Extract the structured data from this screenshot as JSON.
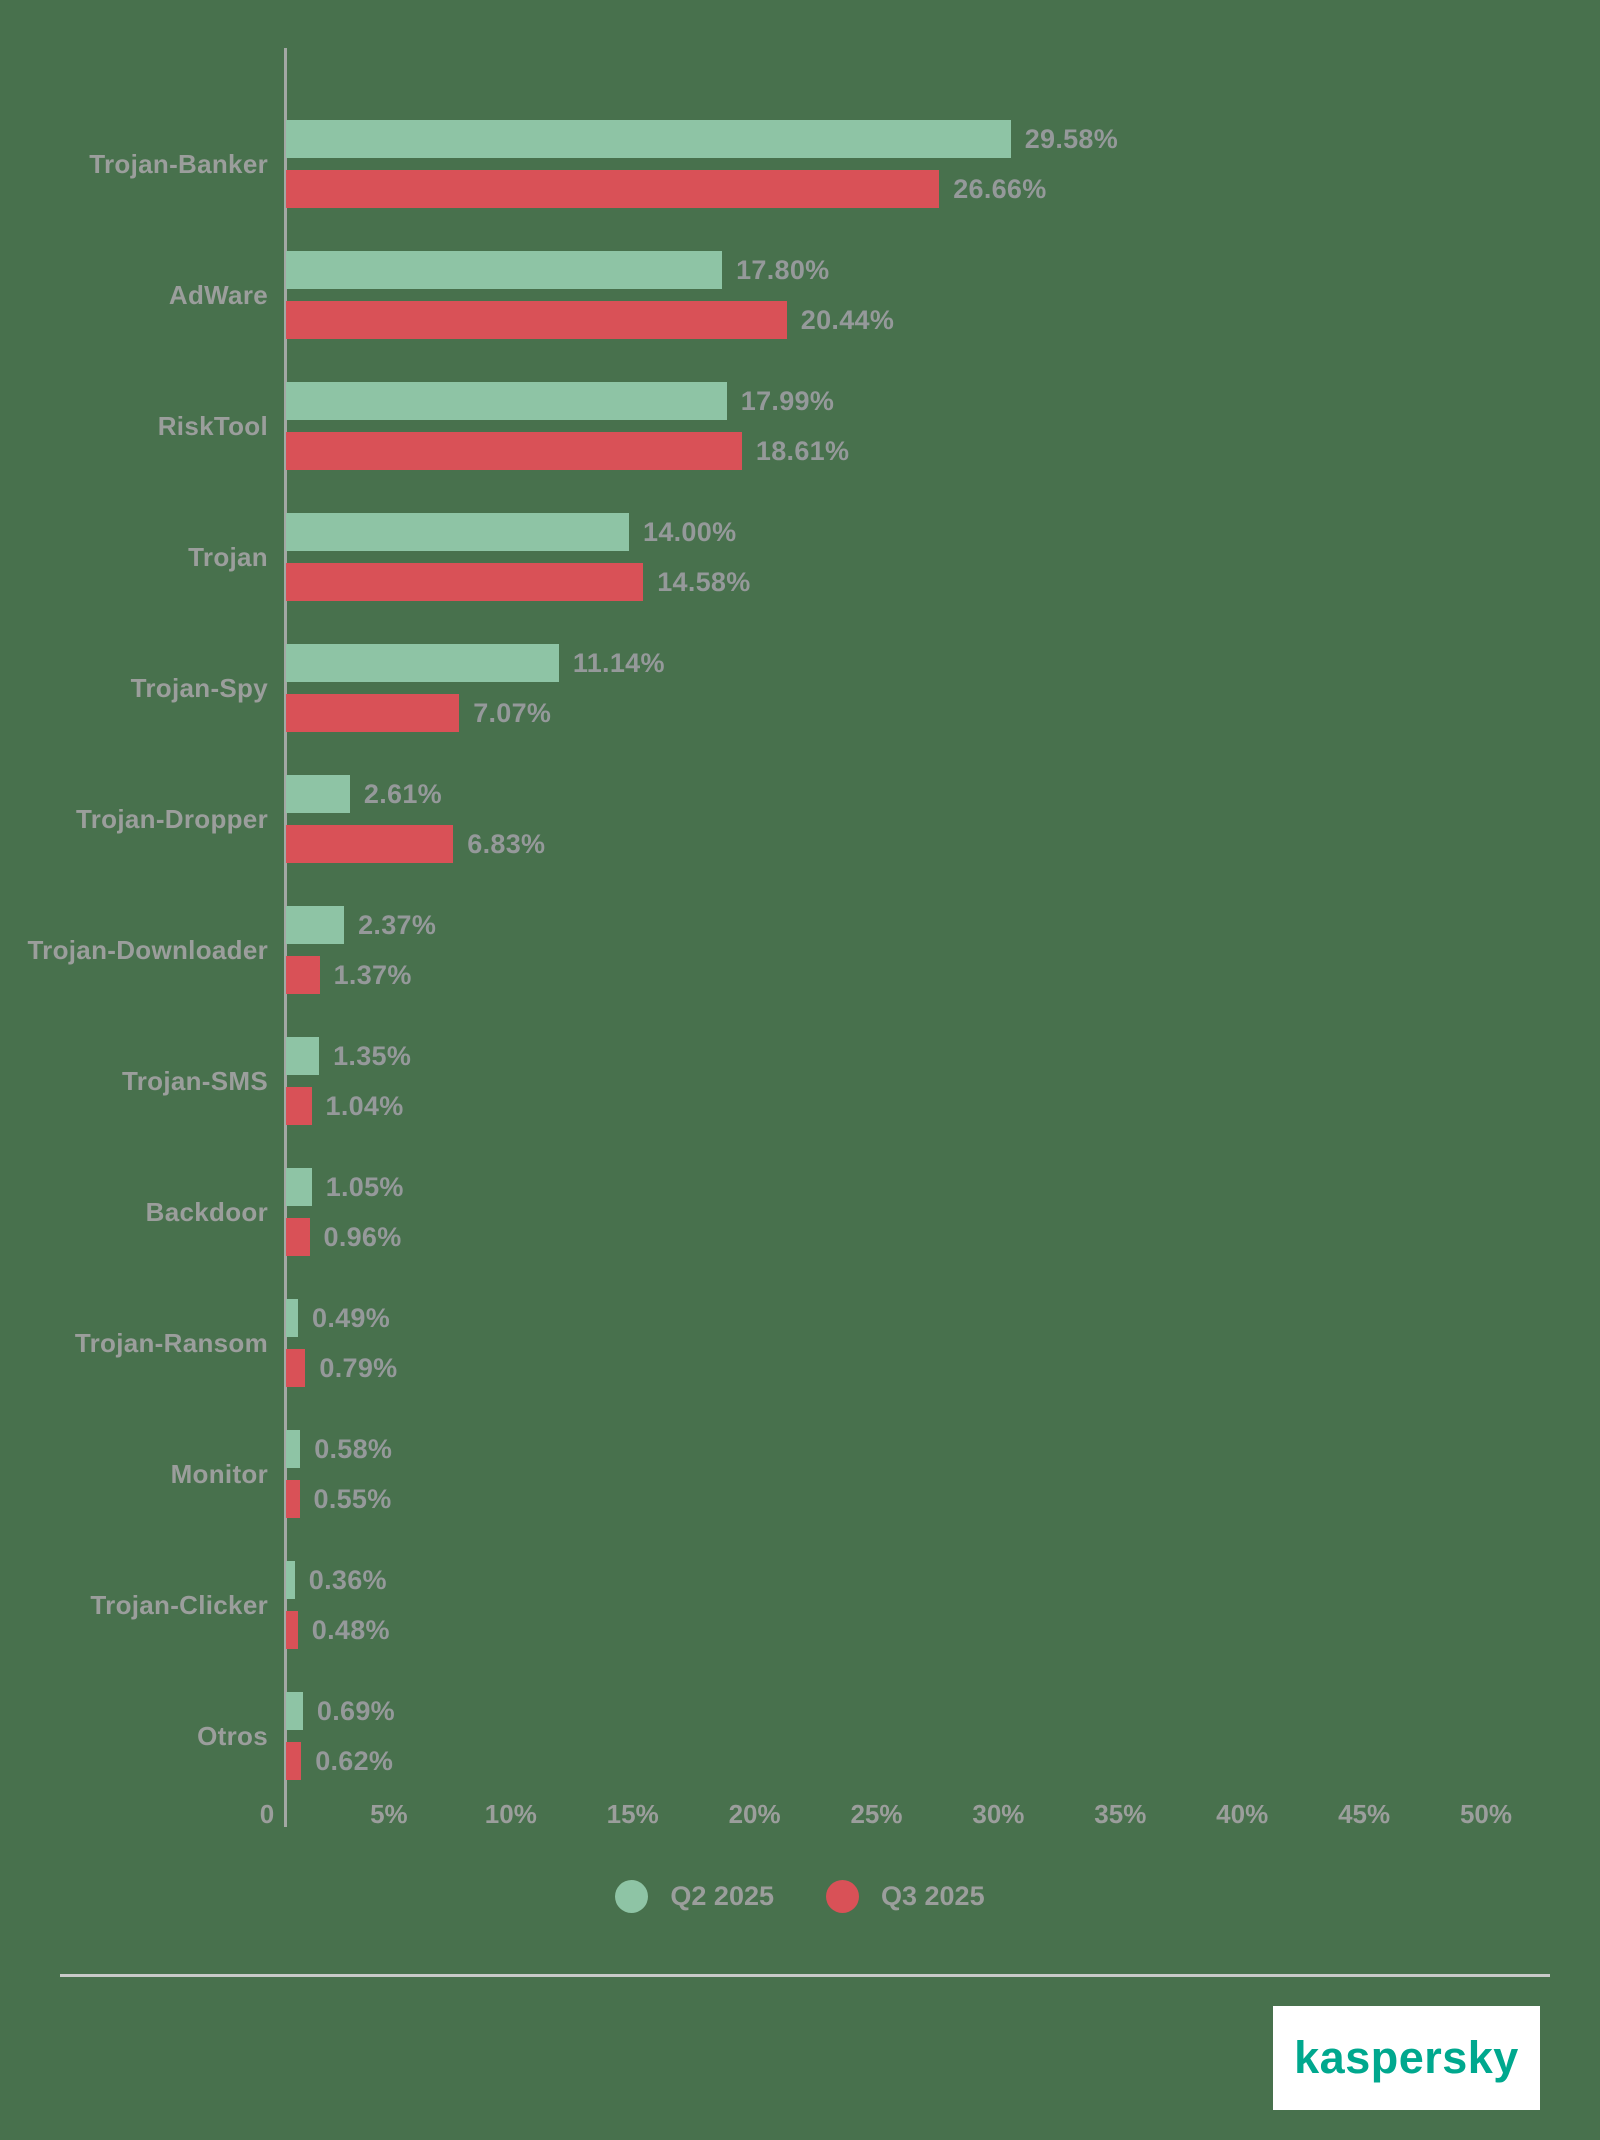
{
  "chart_data": {
    "type": "bar",
    "orientation": "horizontal",
    "categories": [
      "Trojan-Banker",
      "AdWare",
      "RiskTool",
      "Trojan",
      "Trojan-Spy",
      "Trojan-Dropper",
      "Trojan-Downloader",
      "Trojan-SMS",
      "Backdoor",
      "Trojan-Ransom",
      "Monitor",
      "Trojan-Clicker",
      "Otros"
    ],
    "series": [
      {
        "name": "Q2 2025",
        "color": "#8ec4a5",
        "values": [
          29.58,
          17.8,
          17.99,
          14.0,
          11.14,
          2.61,
          2.37,
          1.35,
          1.05,
          0.49,
          0.58,
          0.36,
          0.69
        ],
        "labels": [
          "29.58%",
          "17.80%",
          "17.99%",
          "14.00%",
          "11.14%",
          "2.61%",
          "2.37%",
          "1.35%",
          "1.05%",
          "0.49%",
          "0.58%",
          "0.36%",
          "0.69%"
        ]
      },
      {
        "name": "Q3 2025",
        "color": "#d95157",
        "values": [
          26.66,
          20.44,
          18.61,
          14.58,
          7.07,
          6.83,
          1.37,
          1.04,
          0.96,
          0.79,
          0.55,
          0.48,
          0.62
        ],
        "labels": [
          "26.66%",
          "20.44%",
          "18.61%",
          "14.58%",
          "7.07%",
          "6.83%",
          "1.37%",
          "1.04%",
          "0.96%",
          "0.79%",
          "0.55%",
          "0.48%",
          "0.62%"
        ]
      }
    ],
    "x_axis": {
      "ticks": [
        {
          "label": "0",
          "value": 0
        },
        {
          "label": "5%",
          "value": 5
        },
        {
          "label": "10%",
          "value": 10
        },
        {
          "label": "15%",
          "value": 15
        },
        {
          "label": "20%",
          "value": 20
        },
        {
          "label": "25%",
          "value": 25
        },
        {
          "label": "30%",
          "value": 30
        },
        {
          "label": "35%",
          "value": 35
        },
        {
          "label": "40%",
          "value": 40
        },
        {
          "label": "45%",
          "value": 45
        },
        {
          "label": "50%",
          "value": 50
        }
      ]
    },
    "xlim": [
      0,
      50
    ],
    "grid": false,
    "legend": [
      {
        "label": "Q2 2025",
        "color": "#8ec4a5"
      },
      {
        "label": "Q3 2025",
        "color": "#d95157"
      }
    ],
    "legend_position": "bottom"
  },
  "colors": {
    "background": "#48714d",
    "bar_q2": "#8ec4a5",
    "bar_q3": "#d95157",
    "text_gray": "#9b9e9c",
    "axis_line": "#a3a8a4",
    "divider": "#c9cbc9",
    "logo_teal": "#00a88e",
    "logo_background": "#ffffff"
  },
  "footer": {
    "logo_text": "kaspersky"
  }
}
